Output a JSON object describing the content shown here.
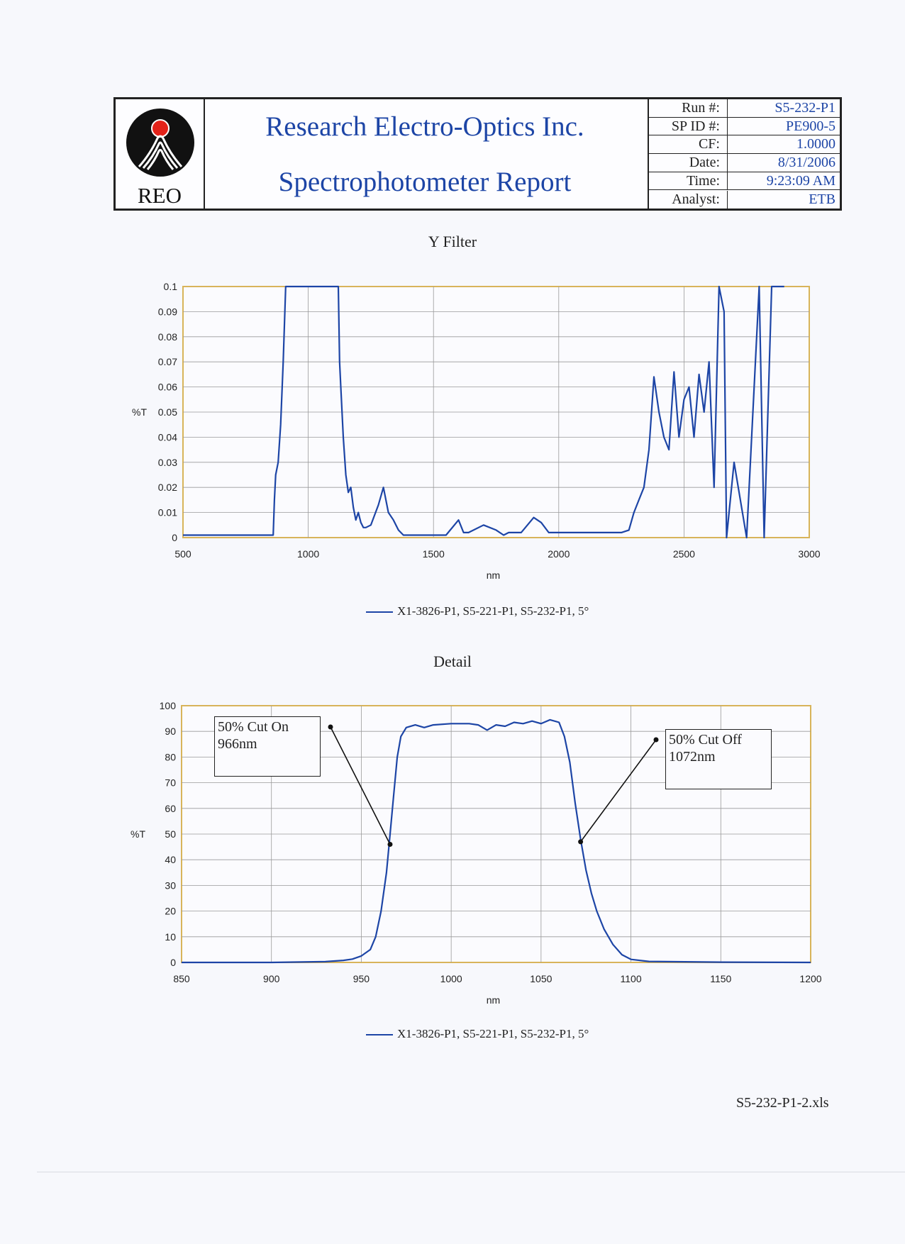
{
  "header": {
    "logo_text": "REO",
    "company": "Research Electro-Optics Inc.",
    "report_title": "Spectrophotometer Report",
    "info": [
      {
        "label": "Run #:",
        "value": "S5-232-P1"
      },
      {
        "label": "SP ID #:",
        "value": "PE900-5"
      },
      {
        "label": "CF:",
        "value": "1.0000"
      },
      {
        "label": "Date:",
        "value": "8/31/2006"
      },
      {
        "label": "Time:",
        "value": "9:23:09 AM"
      },
      {
        "label": "Analyst:",
        "value": "ETB"
      }
    ]
  },
  "chart_data": [
    {
      "type": "line",
      "title": "Y Filter",
      "xlabel": "nm",
      "ylabel": "%T",
      "xlim": [
        500,
        3000
      ],
      "ylim": [
        0,
        0.1
      ],
      "x_ticks": [
        "500",
        "1000",
        "1500",
        "2000",
        "2500",
        "3000"
      ],
      "y_ticks": [
        "0",
        "0.01",
        "0.02",
        "0.03",
        "0.04",
        "0.05",
        "0.06",
        "0.07",
        "0.08",
        "0.09",
        "0.1"
      ],
      "grid": true,
      "legend_position": "bottom",
      "series": [
        {
          "name": "X1-3826-P1, S5-221-P1, S5-232-P1, 5°",
          "color": "#1d45a6",
          "x": [
            500,
            600,
            700,
            800,
            860,
            865,
            870,
            880,
            890,
            900,
            910,
            915,
            1120,
            1125,
            1130,
            1140,
            1150,
            1160,
            1170,
            1180,
            1190,
            1200,
            1210,
            1220,
            1230,
            1250,
            1280,
            1300,
            1320,
            1340,
            1360,
            1380,
            1400,
            1450,
            1500,
            1550,
            1600,
            1620,
            1640,
            1700,
            1750,
            1780,
            1800,
            1850,
            1900,
            1930,
            1960,
            2000,
            2100,
            2200,
            2250,
            2280,
            2300,
            2320,
            2340,
            2360,
            2380,
            2400,
            2420,
            2440,
            2460,
            2480,
            2500,
            2520,
            2540,
            2560,
            2580,
            2600,
            2620,
            2640,
            2660,
            2670,
            2700,
            2750,
            2800,
            2820,
            2850,
            2880,
            2900
          ],
          "values": [
            0.001,
            0.001,
            0.001,
            0.001,
            0.001,
            0.015,
            0.025,
            0.03,
            0.045,
            0.07,
            0.1,
            0.1,
            0.1,
            0.07,
            0.06,
            0.04,
            0.025,
            0.018,
            0.02,
            0.012,
            0.007,
            0.01,
            0.006,
            0.004,
            0.004,
            0.005,
            0.013,
            0.02,
            0.01,
            0.007,
            0.003,
            0.001,
            0.001,
            0.001,
            0.001,
            0.001,
            0.007,
            0.002,
            0.002,
            0.005,
            0.003,
            0.001,
            0.002,
            0.002,
            0.008,
            0.006,
            0.002,
            0.002,
            0.002,
            0.002,
            0.002,
            0.003,
            0.01,
            0.015,
            0.02,
            0.035,
            0.064,
            0.05,
            0.04,
            0.035,
            0.066,
            0.04,
            0.055,
            0.06,
            0.04,
            0.065,
            0.05,
            0.07,
            0.02,
            0.1,
            0.09,
            0.0,
            0.03,
            0.0,
            0.1,
            0.0,
            0.1,
            0.1,
            0.1
          ]
        }
      ]
    },
    {
      "type": "line",
      "title": "Detail",
      "xlabel": "nm",
      "ylabel": "%T",
      "xlim": [
        850,
        1200
      ],
      "ylim": [
        0,
        100
      ],
      "x_ticks": [
        "850",
        "900",
        "950",
        "1000",
        "1050",
        "1100",
        "1150",
        "1200"
      ],
      "y_ticks": [
        "0",
        "10",
        "20",
        "30",
        "40",
        "50",
        "60",
        "70",
        "80",
        "90",
        "100"
      ],
      "grid": true,
      "legend_position": "bottom",
      "series": [
        {
          "name": "X1-3826-P1, S5-221-P1, S5-232-P1, 5°",
          "color": "#1d45a6",
          "x": [
            850,
            900,
            930,
            940,
            945,
            950,
            955,
            958,
            961,
            964,
            966,
            968,
            970,
            972,
            975,
            980,
            985,
            990,
            1000,
            1010,
            1015,
            1020,
            1025,
            1030,
            1035,
            1040,
            1045,
            1050,
            1055,
            1060,
            1063,
            1066,
            1069,
            1072,
            1075,
            1078,
            1081,
            1085,
            1090,
            1095,
            1100,
            1110,
            1150,
            1200
          ],
          "values": [
            0,
            0,
            0.3,
            0.8,
            1.3,
            2.5,
            5,
            10,
            20,
            35,
            50,
            65,
            80,
            88,
            91.5,
            92.5,
            91.5,
            92.5,
            93,
            93,
            92.5,
            90.5,
            92.5,
            92,
            93.5,
            93,
            94,
            93,
            94.5,
            93.5,
            88,
            78,
            62,
            48,
            36,
            27,
            20,
            13,
            7,
            3,
            1.2,
            0.4,
            0.1,
            0
          ]
        }
      ],
      "annotations": [
        {
          "text_line1": "50% Cut On",
          "text_line2": "966nm",
          "x": 966,
          "y": 46
        },
        {
          "text_line1": "50% Cut Off",
          "text_line2": "1072nm",
          "x": 1072,
          "y": 47
        }
      ]
    }
  ],
  "footer": {
    "filename": "S5-232-P1-2.xls"
  }
}
